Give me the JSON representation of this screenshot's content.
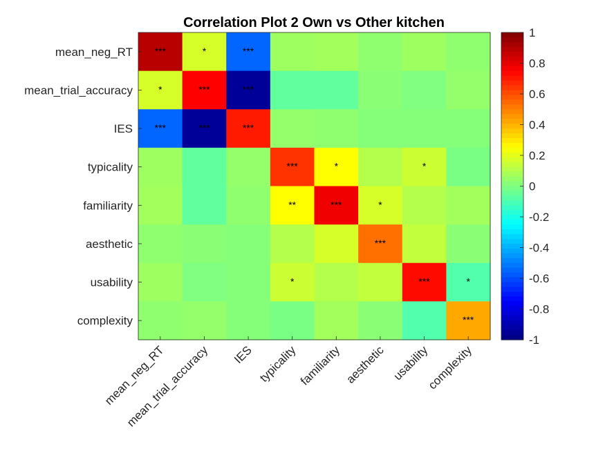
{
  "chart_data": {
    "type": "heatmap",
    "title": "Correlation Plot 2 Own vs Other kitchen",
    "xlabel": "",
    "ylabel": "",
    "row_labels": [
      "mean_neg_RT",
      "mean_trial_accuracy",
      "IES",
      "typicality",
      "familiarity",
      "aesthetic",
      "usability",
      "complexity"
    ],
    "col_labels": [
      "mean_neg_RT",
      "mean_trial_accuracy",
      "IES",
      "typicality",
      "familiarity",
      "aesthetic",
      "usability",
      "complexity"
    ],
    "values": [
      [
        0.89,
        0.17,
        -0.55,
        0.06,
        0.07,
        0.03,
        0.06,
        0.03
      ],
      [
        0.17,
        0.75,
        -0.95,
        -0.06,
        -0.06,
        0.02,
        0.0,
        0.04
      ],
      [
        -0.55,
        -0.95,
        0.7,
        0.04,
        0.03,
        0.01,
        0.01,
        0.01
      ],
      [
        0.06,
        -0.06,
        0.04,
        0.65,
        0.25,
        0.1,
        0.15,
        -0.01
      ],
      [
        0.07,
        -0.06,
        0.03,
        0.25,
        0.78,
        0.17,
        0.1,
        0.07
      ],
      [
        0.03,
        0.02,
        0.01,
        0.1,
        0.17,
        0.53,
        0.13,
        0.02
      ],
      [
        0.06,
        0.0,
        0.01,
        0.15,
        0.1,
        0.13,
        0.73,
        -0.09
      ],
      [
        0.03,
        0.04,
        0.01,
        -0.01,
        0.07,
        0.02,
        -0.09,
        0.42
      ]
    ],
    "significance": [
      [
        "***",
        "*",
        "***",
        "",
        "",
        "",
        "",
        ""
      ],
      [
        "*",
        "***",
        "***",
        "",
        "",
        "",
        "",
        ""
      ],
      [
        "***",
        "***",
        "***",
        "",
        "",
        "",
        "",
        ""
      ],
      [
        "",
        "",
        "",
        "***",
        "*",
        "",
        "*",
        ""
      ],
      [
        "",
        "",
        "",
        "**",
        "***",
        "*",
        "",
        ""
      ],
      [
        "",
        "",
        "",
        "",
        "",
        "***",
        "",
        ""
      ],
      [
        "",
        "",
        "",
        "*",
        "",
        "",
        "***",
        "*"
      ],
      [
        "",
        "",
        "",
        "",
        "",
        "",
        "",
        "***"
      ]
    ],
    "colormap": "jet",
    "clim": [
      -1,
      1
    ],
    "colorbar_ticks": [
      1,
      0.8,
      0.6,
      0.4,
      0.2,
      0,
      -0.2,
      -0.4,
      -0.6,
      -0.8,
      -1
    ],
    "colorbar_ticklabels": [
      "1",
      "0.8",
      "0.6",
      "0.4",
      "0.2",
      "0",
      "-0.2",
      "-0.4",
      "-0.6",
      "-0.8",
      "-1"
    ],
    "colorbar_position": "right",
    "grid": false
  }
}
